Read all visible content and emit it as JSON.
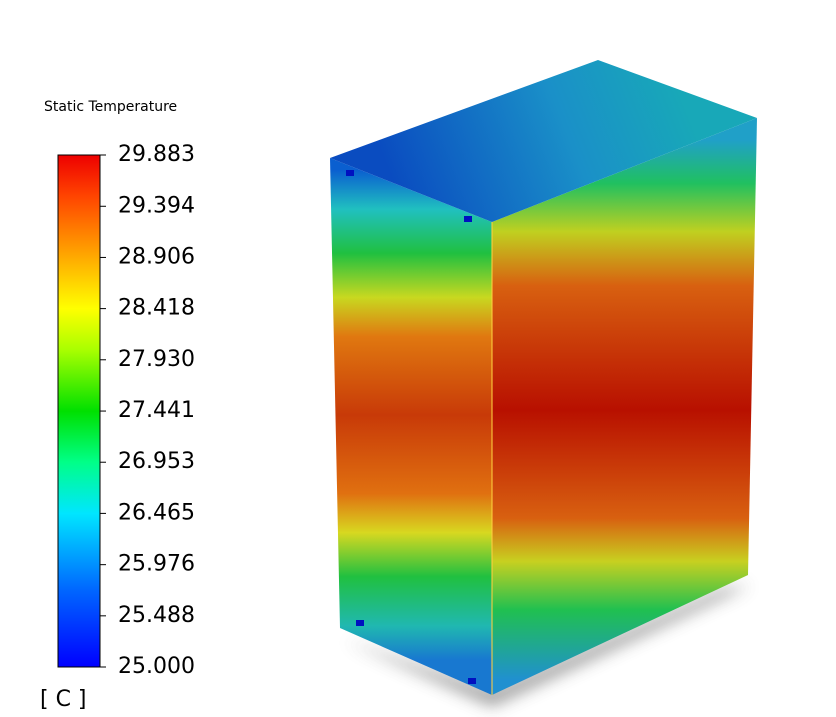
{
  "legend": {
    "title": "Static Temperature",
    "unit": "[ C ]",
    "range": [
      25,
      29.883
    ],
    "ticks": [
      29.883,
      29.394,
      28.906,
      28.418,
      {
        "value": 27.93,
        "label": "27.930"
      },
      27.441,
      26.953,
      26.465,
      25.976,
      25.488,
      {
        "value": 25,
        "label": "25.000"
      }
    ]
  }
}
